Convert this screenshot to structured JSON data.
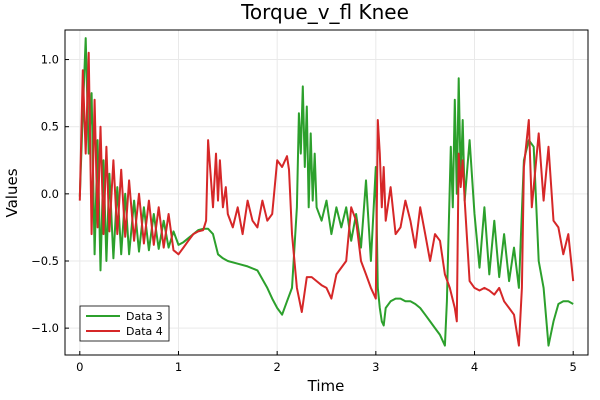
{
  "chart_data": {
    "type": "line",
    "title": "Torque_v_fl Knee",
    "xlabel": "Time",
    "ylabel": "Values",
    "xlim": [
      -0.15,
      5.15
    ],
    "ylim": [
      -1.2,
      1.22
    ],
    "xticks": [
      0,
      1,
      2,
      3,
      4,
      5
    ],
    "xtick_labels": [
      "0",
      "1",
      "2",
      "3",
      "4",
      "5"
    ],
    "yticks": [
      -1.0,
      -0.5,
      0.0,
      0.5,
      1.0
    ],
    "ytick_labels": [
      "−1.0",
      "−0.5",
      "0.0",
      "0.5",
      "1.0"
    ],
    "grid": true,
    "legend_position": "bottom-left",
    "series": [
      {
        "name": "Data 3",
        "color": "#2ca02c",
        "x": [
          0.0,
          0.03,
          0.06,
          0.09,
          0.12,
          0.15,
          0.18,
          0.21,
          0.24,
          0.27,
          0.3,
          0.34,
          0.38,
          0.42,
          0.46,
          0.5,
          0.55,
          0.6,
          0.65,
          0.7,
          0.75,
          0.8,
          0.85,
          0.9,
          0.95,
          1.0,
          1.05,
          1.1,
          1.15,
          1.2,
          1.25,
          1.3,
          1.35,
          1.4,
          1.45,
          1.5,
          1.6,
          1.7,
          1.8,
          1.9,
          1.95,
          2.0,
          2.05,
          2.1,
          2.15,
          2.2,
          2.22,
          2.24,
          2.26,
          2.28,
          2.3,
          2.32,
          2.34,
          2.36,
          2.38,
          2.4,
          2.45,
          2.5,
          2.55,
          2.6,
          2.65,
          2.7,
          2.75,
          2.8,
          2.85,
          2.9,
          2.95,
          3.0,
          3.02,
          3.04,
          3.06,
          3.08,
          3.1,
          3.15,
          3.2,
          3.25,
          3.3,
          3.35,
          3.4,
          3.45,
          3.5,
          3.55,
          3.6,
          3.65,
          3.7,
          3.72,
          3.74,
          3.76,
          3.78,
          3.8,
          3.82,
          3.84,
          3.86,
          3.88,
          3.9,
          3.95,
          4.0,
          4.05,
          4.1,
          4.15,
          4.2,
          4.25,
          4.3,
          4.35,
          4.4,
          4.45,
          4.5,
          4.55,
          4.6,
          4.65,
          4.7,
          4.75,
          4.8,
          4.85,
          4.9,
          4.95,
          5.0
        ],
        "y": [
          -0.02,
          0.6,
          1.16,
          0.3,
          0.75,
          -0.45,
          0.4,
          -0.57,
          0.25,
          -0.5,
          0.15,
          -0.48,
          0.05,
          -0.45,
          0.0,
          -0.45,
          -0.05,
          -0.43,
          -0.1,
          -0.42,
          -0.15,
          -0.41,
          -0.2,
          -0.4,
          -0.28,
          -0.38,
          -0.36,
          -0.33,
          -0.3,
          -0.27,
          -0.26,
          -0.26,
          -0.3,
          -0.45,
          -0.48,
          -0.5,
          -0.52,
          -0.54,
          -0.57,
          -0.7,
          -0.78,
          -0.85,
          -0.9,
          -0.8,
          -0.7,
          -0.1,
          0.6,
          0.3,
          0.8,
          0.2,
          0.65,
          -0.1,
          0.45,
          -0.05,
          0.3,
          -0.1,
          -0.2,
          -0.05,
          -0.3,
          -0.1,
          -0.25,
          -0.1,
          -0.35,
          -0.15,
          -0.4,
          0.1,
          -0.5,
          0.2,
          -0.7,
          -0.85,
          -0.95,
          -0.98,
          -0.85,
          -0.8,
          -0.78,
          -0.78,
          -0.8,
          -0.8,
          -0.82,
          -0.85,
          -0.9,
          -0.95,
          -1.0,
          -1.05,
          -1.13,
          -0.8,
          -0.2,
          0.35,
          -0.1,
          0.7,
          0.0,
          0.86,
          0.1,
          0.55,
          -0.05,
          0.4,
          -0.15,
          -0.55,
          -0.1,
          -0.6,
          -0.2,
          -0.62,
          -0.3,
          -0.65,
          -0.4,
          -0.7,
          0.25,
          0.4,
          0.35,
          -0.5,
          -0.7,
          -1.13,
          -0.95,
          -0.82,
          -0.8,
          -0.8,
          -0.82
        ]
      },
      {
        "name": "Data 4",
        "color": "#d62728",
        "x": [
          0.0,
          0.03,
          0.06,
          0.09,
          0.12,
          0.15,
          0.18,
          0.21,
          0.24,
          0.27,
          0.3,
          0.34,
          0.38,
          0.42,
          0.46,
          0.5,
          0.55,
          0.6,
          0.65,
          0.7,
          0.75,
          0.8,
          0.85,
          0.9,
          0.95,
          1.0,
          1.05,
          1.1,
          1.15,
          1.2,
          1.25,
          1.28,
          1.3,
          1.35,
          1.38,
          1.4,
          1.42,
          1.45,
          1.48,
          1.5,
          1.55,
          1.6,
          1.65,
          1.7,
          1.75,
          1.8,
          1.85,
          1.9,
          1.95,
          2.0,
          2.05,
          2.1,
          2.12,
          2.15,
          2.2,
          2.25,
          2.3,
          2.35,
          2.4,
          2.45,
          2.5,
          2.55,
          2.6,
          2.7,
          2.75,
          2.8,
          2.85,
          2.9,
          2.95,
          3.0,
          3.02,
          3.04,
          3.06,
          3.08,
          3.1,
          3.15,
          3.2,
          3.25,
          3.3,
          3.35,
          3.4,
          3.45,
          3.5,
          3.55,
          3.6,
          3.65,
          3.7,
          3.75,
          3.8,
          3.82,
          3.84,
          3.86,
          3.88,
          3.9,
          3.95,
          4.0,
          4.05,
          4.1,
          4.15,
          4.2,
          4.25,
          4.3,
          4.35,
          4.4,
          4.45,
          4.48,
          4.5,
          4.55,
          4.58,
          4.6,
          4.65,
          4.7,
          4.75,
          4.8,
          4.85,
          4.9,
          4.95,
          5.0
        ],
        "y": [
          -0.05,
          0.92,
          0.3,
          1.05,
          -0.3,
          0.7,
          -0.25,
          0.5,
          -0.3,
          0.35,
          -0.28,
          0.25,
          -0.3,
          0.18,
          -0.32,
          0.1,
          -0.35,
          0.0,
          -0.37,
          -0.05,
          -0.38,
          -0.1,
          -0.4,
          -0.15,
          -0.42,
          -0.45,
          -0.4,
          -0.35,
          -0.3,
          -0.28,
          -0.27,
          -0.2,
          0.4,
          -0.1,
          0.3,
          -0.05,
          0.25,
          -0.1,
          0.05,
          -0.15,
          -0.25,
          -0.1,
          -0.3,
          -0.05,
          -0.2,
          -0.25,
          -0.05,
          -0.2,
          -0.15,
          0.25,
          0.2,
          0.28,
          0.18,
          -0.3,
          -0.7,
          -0.88,
          -0.62,
          -0.62,
          -0.65,
          -0.68,
          -0.7,
          -0.78,
          -0.6,
          -0.5,
          -0.1,
          -0.2,
          -0.5,
          -0.6,
          -0.7,
          -0.78,
          0.55,
          0.3,
          -0.1,
          0.2,
          -0.2,
          0.05,
          -0.3,
          -0.25,
          -0.05,
          -0.2,
          -0.4,
          -0.1,
          -0.3,
          -0.5,
          -0.3,
          -0.35,
          -0.6,
          -0.7,
          -0.85,
          -0.95,
          0.3,
          0.05,
          0.25,
          -0.05,
          -0.65,
          -0.7,
          -0.72,
          -0.7,
          -0.72,
          -0.75,
          -0.7,
          -0.8,
          -0.85,
          -0.9,
          -1.13,
          -0.7,
          0.2,
          0.55,
          -0.1,
          0.05,
          0.45,
          -0.05,
          0.35,
          -0.2,
          -0.25,
          -0.45,
          -0.3,
          -0.65
        ]
      }
    ]
  }
}
